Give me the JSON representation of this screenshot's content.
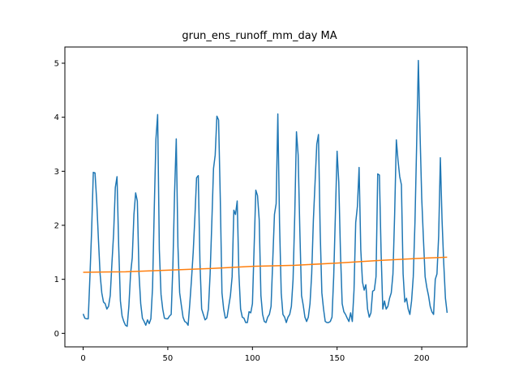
{
  "chart_data": {
    "type": "line",
    "title": "grun_ens_runoff_mm_day MA",
    "xlabel": "",
    "ylabel": "",
    "xlim": [
      -10.8,
      226.8
    ],
    "ylim": [
      -0.25,
      5.3
    ],
    "xticks": [
      0,
      50,
      100,
      150,
      200
    ],
    "yticks": [
      0,
      1,
      2,
      3,
      4,
      5
    ],
    "grid": false,
    "legend": "none",
    "series": [
      {
        "color": "#1f77b4",
        "points": [
          [
            0,
            0.36
          ],
          [
            1,
            0.28
          ],
          [
            2,
            0.27
          ],
          [
            3,
            0.27
          ],
          [
            4,
            1.05
          ],
          [
            5,
            1.9
          ],
          [
            6,
            2.98
          ],
          [
            7,
            2.97
          ],
          [
            8,
            2.45
          ],
          [
            9,
            1.75
          ],
          [
            10,
            1.1
          ],
          [
            11,
            0.75
          ],
          [
            12,
            0.58
          ],
          [
            13,
            0.55
          ],
          [
            14,
            0.45
          ],
          [
            15,
            0.5
          ],
          [
            16,
            0.7
          ],
          [
            17,
            1.3
          ],
          [
            18,
            1.85
          ],
          [
            19,
            2.7
          ],
          [
            20,
            2.9
          ],
          [
            21,
            1.6
          ],
          [
            22,
            0.6
          ],
          [
            23,
            0.32
          ],
          [
            24,
            0.22
          ],
          [
            25,
            0.15
          ],
          [
            26,
            0.13
          ],
          [
            27,
            0.5
          ],
          [
            28,
            1.1
          ],
          [
            29,
            1.4
          ],
          [
            30,
            2.2
          ],
          [
            31,
            2.6
          ],
          [
            32,
            2.45
          ],
          [
            33,
            1.1
          ],
          [
            34,
            0.55
          ],
          [
            35,
            0.28
          ],
          [
            36,
            0.22
          ],
          [
            37,
            0.15
          ],
          [
            38,
            0.25
          ],
          [
            39,
            0.18
          ],
          [
            40,
            0.27
          ],
          [
            41,
            0.85
          ],
          [
            42,
            2.3
          ],
          [
            43,
            3.6
          ],
          [
            44,
            4.05
          ],
          [
            45,
            1.55
          ],
          [
            46,
            0.72
          ],
          [
            47,
            0.45
          ],
          [
            48,
            0.28
          ],
          [
            49,
            0.27
          ],
          [
            50,
            0.27
          ],
          [
            51,
            0.32
          ],
          [
            52,
            0.35
          ],
          [
            53,
            1.25
          ],
          [
            54,
            2.6
          ],
          [
            55,
            3.6
          ],
          [
            56,
            1.6
          ],
          [
            57,
            0.75
          ],
          [
            58,
            0.52
          ],
          [
            59,
            0.3
          ],
          [
            60,
            0.22
          ],
          [
            61,
            0.2
          ],
          [
            62,
            0.15
          ],
          [
            63,
            0.55
          ],
          [
            64,
            1.0
          ],
          [
            65,
            1.5
          ],
          [
            66,
            2.15
          ],
          [
            67,
            2.88
          ],
          [
            68,
            2.92
          ],
          [
            69,
            1.3
          ],
          [
            70,
            0.45
          ],
          [
            71,
            0.35
          ],
          [
            72,
            0.25
          ],
          [
            73,
            0.28
          ],
          [
            74,
            0.45
          ],
          [
            75,
            1.1
          ],
          [
            76,
            2.05
          ],
          [
            77,
            3.05
          ],
          [
            78,
            3.3
          ],
          [
            79,
            4.02
          ],
          [
            80,
            3.95
          ],
          [
            81,
            2.5
          ],
          [
            82,
            0.75
          ],
          [
            83,
            0.45
          ],
          [
            84,
            0.28
          ],
          [
            85,
            0.3
          ],
          [
            86,
            0.5
          ],
          [
            87,
            0.7
          ],
          [
            88,
            1.05
          ],
          [
            89,
            2.28
          ],
          [
            90,
            2.2
          ],
          [
            91,
            2.45
          ],
          [
            92,
            1.1
          ],
          [
            93,
            0.45
          ],
          [
            94,
            0.3
          ],
          [
            95,
            0.28
          ],
          [
            96,
            0.2
          ],
          [
            97,
            0.2
          ],
          [
            98,
            0.4
          ],
          [
            99,
            0.38
          ],
          [
            100,
            0.55
          ],
          [
            101,
            1.6
          ],
          [
            102,
            2.65
          ],
          [
            103,
            2.55
          ],
          [
            104,
            2.1
          ],
          [
            105,
            0.7
          ],
          [
            106,
            0.35
          ],
          [
            107,
            0.22
          ],
          [
            108,
            0.2
          ],
          [
            109,
            0.3
          ],
          [
            110,
            0.35
          ],
          [
            111,
            0.5
          ],
          [
            112,
            1.35
          ],
          [
            113,
            2.2
          ],
          [
            114,
            2.4
          ],
          [
            115,
            4.06
          ],
          [
            116,
            2.05
          ],
          [
            117,
            0.75
          ],
          [
            118,
            0.35
          ],
          [
            119,
            0.3
          ],
          [
            120,
            0.2
          ],
          [
            121,
            0.3
          ],
          [
            122,
            0.35
          ],
          [
            123,
            0.5
          ],
          [
            124,
            1.0
          ],
          [
            125,
            2.2
          ],
          [
            126,
            3.73
          ],
          [
            127,
            3.3
          ],
          [
            128,
            1.9
          ],
          [
            129,
            0.7
          ],
          [
            130,
            0.52
          ],
          [
            131,
            0.3
          ],
          [
            132,
            0.22
          ],
          [
            133,
            0.3
          ],
          [
            134,
            0.55
          ],
          [
            135,
            1.1
          ],
          [
            136,
            2.1
          ],
          [
            137,
            2.8
          ],
          [
            138,
            3.5
          ],
          [
            139,
            3.68
          ],
          [
            140,
            1.9
          ],
          [
            141,
            0.75
          ],
          [
            142,
            0.45
          ],
          [
            143,
            0.22
          ],
          [
            144,
            0.2
          ],
          [
            145,
            0.2
          ],
          [
            146,
            0.22
          ],
          [
            147,
            0.3
          ],
          [
            148,
            1.05
          ],
          [
            149,
            2.2
          ],
          [
            150,
            3.37
          ],
          [
            151,
            2.8
          ],
          [
            152,
            1.5
          ],
          [
            153,
            0.55
          ],
          [
            154,
            0.4
          ],
          [
            155,
            0.35
          ],
          [
            156,
            0.28
          ],
          [
            157,
            0.22
          ],
          [
            158,
            0.38
          ],
          [
            159,
            0.22
          ],
          [
            160,
            0.8
          ],
          [
            161,
            2.05
          ],
          [
            162,
            2.35
          ],
          [
            163,
            3.07
          ],
          [
            164,
            1.55
          ],
          [
            165,
            0.95
          ],
          [
            166,
            0.8
          ],
          [
            167,
            0.9
          ],
          [
            168,
            0.45
          ],
          [
            169,
            0.3
          ],
          [
            170,
            0.38
          ],
          [
            171,
            0.78
          ],
          [
            172,
            0.8
          ],
          [
            173,
            1.05
          ],
          [
            174,
            2.95
          ],
          [
            175,
            2.93
          ],
          [
            176,
            1.5
          ],
          [
            177,
            0.45
          ],
          [
            178,
            0.6
          ],
          [
            179,
            0.45
          ],
          [
            180,
            0.5
          ],
          [
            181,
            0.65
          ],
          [
            182,
            0.75
          ],
          [
            183,
            1.1
          ],
          [
            184,
            2.2
          ],
          [
            185,
            3.58
          ],
          [
            186,
            3.2
          ],
          [
            187,
            2.9
          ],
          [
            188,
            2.75
          ],
          [
            189,
            1.1
          ],
          [
            190,
            0.58
          ],
          [
            191,
            0.65
          ],
          [
            192,
            0.45
          ],
          [
            193,
            0.35
          ],
          [
            194,
            0.6
          ],
          [
            195,
            1.05
          ],
          [
            196,
            2.05
          ],
          [
            197,
            3.5
          ],
          [
            198,
            5.05
          ],
          [
            199,
            3.7
          ],
          [
            200,
            2.5
          ],
          [
            201,
            1.75
          ],
          [
            202,
            1.05
          ],
          [
            203,
            0.85
          ],
          [
            204,
            0.7
          ],
          [
            205,
            0.5
          ],
          [
            206,
            0.4
          ],
          [
            207,
            0.35
          ],
          [
            208,
            1.0
          ],
          [
            209,
            1.1
          ],
          [
            210,
            1.8
          ],
          [
            211,
            3.25
          ],
          [
            212,
            2.1
          ],
          [
            213,
            1.3
          ],
          [
            214,
            0.65
          ],
          [
            215,
            0.38
          ]
        ]
      },
      {
        "color": "#ff7f0e",
        "points": [
          [
            0,
            1.13
          ],
          [
            25,
            1.14
          ],
          [
            50,
            1.17
          ],
          [
            75,
            1.2
          ],
          [
            100,
            1.24
          ],
          [
            125,
            1.26
          ],
          [
            150,
            1.3
          ],
          [
            175,
            1.35
          ],
          [
            200,
            1.39
          ],
          [
            215,
            1.41
          ]
        ]
      }
    ]
  }
}
